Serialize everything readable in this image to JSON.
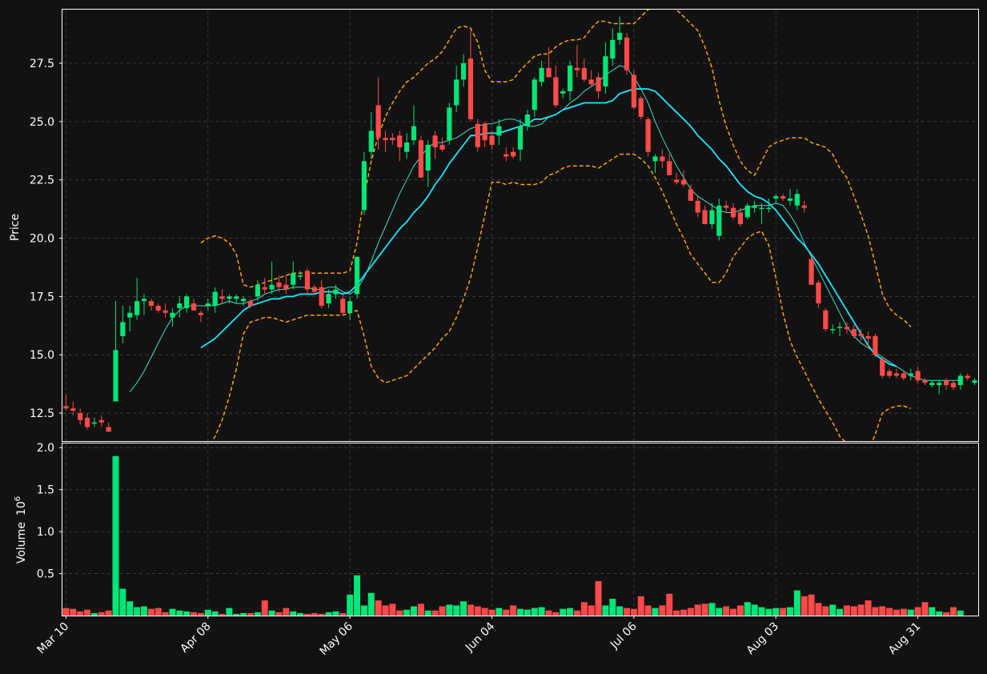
{
  "chart_data": {
    "type": "candlestick",
    "price_ylabel": "Price",
    "volume_ylabel": "Volume",
    "volume_exponent": "6",
    "price_ylim": [
      11.3,
      29.8
    ],
    "volume_ylim": [
      0,
      2.05
    ],
    "price_ticks": [
      "12.5",
      "15.0",
      "17.5",
      "20.0",
      "22.5",
      "25.0",
      "27.5"
    ],
    "volume_ticks": [
      "0.5",
      "1.0",
      "1.5",
      "2.0"
    ],
    "x_tick_labels": [
      {
        "label": "Mar 10",
        "index": 0
      },
      {
        "label": "Apr 08",
        "index": 20
      },
      {
        "label": "May 06",
        "index": 40
      },
      {
        "label": "Jun 04",
        "index": 60
      },
      {
        "label": "Jul 06",
        "index": 80
      },
      {
        "label": "Aug 03",
        "index": 100
      },
      {
        "label": "Aug 31",
        "index": 120
      }
    ],
    "grid": true,
    "colors": {
      "background": "#121212",
      "up": "#00e676",
      "down": "#ff4a4a",
      "bollinger": "#ffa500",
      "ma_fast": "#40e0d0",
      "ma_slow": "#1fe6ff",
      "grid": "#444444",
      "frame": "#ffffff",
      "text": "#ffffff"
    },
    "ohlc": [
      [
        12.8,
        13.3,
        12.6,
        12.7
      ],
      [
        12.7,
        13.0,
        12.4,
        12.6
      ],
      [
        12.5,
        12.7,
        12.0,
        12.2
      ],
      [
        12.3,
        12.5,
        11.8,
        11.9
      ],
      [
        12.1,
        12.3,
        11.9,
        12.1
      ],
      [
        12.2,
        12.4,
        11.9,
        12.1
      ],
      [
        11.9,
        12.1,
        11.7,
        11.7
      ],
      [
        13.0,
        17.3,
        13.0,
        15.2
      ],
      [
        15.8,
        17.1,
        15.5,
        16.4
      ],
      [
        16.6,
        17.1,
        16.0,
        16.8
      ],
      [
        16.7,
        18.3,
        16.5,
        17.3
      ],
      [
        17.3,
        17.6,
        16.7,
        17.4
      ],
      [
        17.3,
        17.4,
        16.9,
        17.1
      ],
      [
        17.1,
        17.2,
        16.8,
        16.9
      ],
      [
        16.9,
        17.2,
        16.6,
        16.8
      ],
      [
        16.6,
        17.0,
        16.2,
        16.8
      ],
      [
        17.0,
        17.5,
        16.6,
        17.2
      ],
      [
        17.0,
        17.6,
        16.8,
        17.5
      ],
      [
        17.2,
        17.4,
        16.9,
        16.9
      ],
      [
        16.8,
        16.9,
        16.4,
        16.7
      ],
      [
        17.1,
        17.4,
        16.9,
        17.2
      ],
      [
        17.1,
        17.9,
        16.8,
        17.7
      ],
      [
        17.5,
        17.8,
        17.2,
        17.4
      ],
      [
        17.4,
        17.6,
        17.2,
        17.5
      ],
      [
        17.4,
        17.6,
        17.2,
        17.5
      ],
      [
        17.3,
        17.5,
        17.1,
        17.4
      ],
      [
        17.3,
        17.4,
        17.0,
        17.1
      ],
      [
        17.5,
        18.2,
        17.3,
        18.0
      ],
      [
        17.9,
        18.3,
        17.6,
        17.8
      ],
      [
        17.8,
        19.0,
        17.6,
        18.0
      ],
      [
        18.1,
        18.4,
        17.7,
        17.9
      ],
      [
        18.0,
        18.4,
        17.6,
        17.8
      ],
      [
        18.0,
        19.0,
        17.8,
        18.5
      ],
      [
        18.4,
        18.6,
        18.2,
        18.4
      ],
      [
        18.6,
        18.7,
        17.6,
        17.8
      ],
      [
        17.9,
        18.0,
        17.6,
        17.7
      ],
      [
        17.9,
        18.2,
        17.0,
        17.1
      ],
      [
        17.2,
        17.8,
        17.0,
        17.6
      ],
      [
        17.6,
        18.0,
        17.4,
        17.8
      ],
      [
        17.4,
        17.6,
        16.7,
        16.8
      ],
      [
        16.8,
        17.5,
        16.5,
        17.3
      ],
      [
        17.6,
        19.2,
        17.4,
        19.2
      ],
      [
        21.2,
        23.7,
        21.0,
        23.3
      ],
      [
        23.7,
        25.4,
        23.4,
        24.6
      ],
      [
        25.7,
        26.9,
        23.8,
        24.3
      ],
      [
        24.3,
        24.6,
        23.7,
        24.2
      ],
      [
        24.3,
        24.5,
        24.0,
        24.2
      ],
      [
        24.4,
        24.6,
        23.3,
        23.9
      ],
      [
        23.7,
        24.5,
        23.4,
        24.1
      ],
      [
        24.2,
        25.7,
        24.0,
        24.8
      ],
      [
        24.2,
        24.4,
        22.6,
        22.6
      ],
      [
        22.9,
        24.2,
        22.2,
        24.0
      ],
      [
        24.4,
        24.6,
        23.4,
        23.9
      ],
      [
        24.0,
        24.3,
        23.7,
        23.8
      ],
      [
        24.2,
        25.8,
        24.0,
        25.6
      ],
      [
        25.7,
        27.4,
        25.4,
        26.8
      ],
      [
        26.8,
        27.9,
        26.5,
        27.5
      ],
      [
        27.7,
        28.9,
        25.0,
        25.1
      ],
      [
        24.9,
        25.1,
        23.7,
        23.9
      ],
      [
        24.9,
        25.0,
        23.9,
        24.2
      ],
      [
        24.4,
        24.6,
        23.8,
        24.0
      ],
      [
        24.4,
        25.1,
        24.0,
        24.8
      ],
      [
        23.6,
        23.9,
        23.3,
        23.5
      ],
      [
        23.7,
        23.9,
        23.4,
        23.5
      ],
      [
        23.8,
        25.1,
        23.3,
        24.8
      ],
      [
        24.8,
        25.5,
        24.6,
        25.3
      ],
      [
        25.5,
        26.9,
        25.2,
        26.8
      ],
      [
        26.7,
        27.6,
        26.5,
        27.3
      ],
      [
        27.3,
        28.2,
        26.9,
        26.9
      ],
      [
        26.9,
        27.4,
        25.6,
        25.7
      ],
      [
        26.2,
        26.4,
        26.0,
        26.3
      ],
      [
        26.3,
        27.6,
        25.9,
        27.4
      ],
      [
        27.3,
        28.3,
        26.9,
        27.2
      ],
      [
        27.3,
        27.7,
        26.7,
        26.8
      ],
      [
        26.8,
        27.2,
        26.5,
        26.6
      ],
      [
        26.9,
        27.1,
        26.0,
        26.3
      ],
      [
        26.5,
        28.4,
        26.2,
        27.8
      ],
      [
        27.7,
        29.0,
        27.4,
        28.5
      ],
      [
        28.5,
        29.5,
        28.3,
        28.8
      ],
      [
        28.6,
        28.8,
        27.0,
        27.2
      ],
      [
        27.0,
        27.2,
        25.5,
        25.6
      ],
      [
        26.0,
        26.1,
        25.1,
        25.2
      ],
      [
        25.1,
        25.2,
        23.5,
        23.7
      ],
      [
        23.3,
        23.6,
        22.8,
        23.5
      ],
      [
        23.5,
        23.8,
        23.0,
        23.3
      ],
      [
        23.3,
        23.6,
        22.7,
        22.7
      ],
      [
        22.5,
        22.8,
        22.3,
        22.4
      ],
      [
        22.5,
        22.9,
        22.2,
        22.3
      ],
      [
        22.1,
        22.3,
        21.7,
        21.6
      ],
      [
        21.6,
        21.8,
        20.9,
        21.1
      ],
      [
        21.2,
        21.4,
        20.6,
        20.6
      ],
      [
        20.6,
        21.5,
        20.4,
        21.2
      ],
      [
        20.1,
        21.7,
        19.9,
        21.4
      ],
      [
        21.4,
        21.6,
        21.1,
        21.3
      ],
      [
        21.3,
        21.5,
        20.8,
        20.9
      ],
      [
        21.1,
        21.3,
        20.5,
        20.6
      ],
      [
        20.9,
        21.5,
        20.8,
        21.4
      ],
      [
        21.3,
        21.6,
        21.1,
        21.4
      ],
      [
        21.3,
        21.5,
        20.6,
        21.3
      ],
      [
        21.3,
        21.7,
        21.1,
        21.3
      ],
      [
        21.7,
        21.9,
        21.5,
        21.8
      ],
      [
        21.8,
        21.9,
        21.6,
        21.7
      ],
      [
        21.6,
        22.1,
        21.4,
        21.7
      ],
      [
        21.4,
        22.1,
        21.2,
        21.9
      ],
      [
        21.4,
        21.6,
        21.1,
        21.3
      ],
      [
        19.1,
        19.3,
        18.1,
        18.0
      ],
      [
        18.1,
        18.2,
        17.0,
        17.2
      ],
      [
        16.9,
        17.0,
        16.0,
        16.1
      ],
      [
        16.1,
        16.3,
        15.9,
        16.1
      ],
      [
        16.2,
        16.4,
        15.8,
        16.2
      ],
      [
        16.2,
        16.4,
        15.9,
        16.1
      ],
      [
        16.1,
        16.3,
        15.7,
        15.8
      ],
      [
        15.9,
        16.1,
        15.6,
        15.8
      ],
      [
        15.8,
        16.0,
        15.3,
        15.7
      ],
      [
        15.8,
        15.9,
        14.9,
        15.0
      ],
      [
        14.8,
        14.9,
        14.0,
        14.1
      ],
      [
        14.3,
        14.4,
        14.0,
        14.1
      ],
      [
        14.2,
        14.4,
        14.0,
        14.1
      ],
      [
        14.2,
        14.3,
        13.9,
        14.0
      ],
      [
        14.1,
        14.4,
        13.9,
        14.2
      ],
      [
        14.3,
        14.5,
        13.8,
        13.9
      ],
      [
        13.9,
        14.0,
        13.7,
        13.8
      ],
      [
        13.7,
        13.9,
        13.6,
        13.8
      ],
      [
        13.7,
        13.9,
        13.3,
        13.8
      ],
      [
        13.9,
        14.0,
        13.5,
        13.7
      ],
      [
        13.8,
        13.9,
        13.5,
        13.6
      ],
      [
        13.7,
        14.2,
        13.5,
        14.1
      ],
      [
        14.1,
        14.2,
        13.9,
        14.0
      ],
      [
        13.8,
        14.0,
        13.7,
        13.9
      ]
    ],
    "volume": [
      0.09,
      0.08,
      0.05,
      0.07,
      0.03,
      0.04,
      0.06,
      1.9,
      0.32,
      0.17,
      0.1,
      0.11,
      0.08,
      0.09,
      0.04,
      0.08,
      0.06,
      0.05,
      0.04,
      0.03,
      0.07,
      0.05,
      0.02,
      0.09,
      0.02,
      0.03,
      0.03,
      0.04,
      0.18,
      0.06,
      0.04,
      0.09,
      0.05,
      0.03,
      0.02,
      0.03,
      0.02,
      0.04,
      0.05,
      0.03,
      0.25,
      0.48,
      0.12,
      0.27,
      0.18,
      0.12,
      0.14,
      0.06,
      0.07,
      0.11,
      0.14,
      0.06,
      0.06,
      0.11,
      0.13,
      0.12,
      0.17,
      0.13,
      0.11,
      0.09,
      0.07,
      0.09,
      0.07,
      0.12,
      0.08,
      0.07,
      0.09,
      0.1,
      0.06,
      0.04,
      0.08,
      0.09,
      0.06,
      0.16,
      0.12,
      0.41,
      0.12,
      0.2,
      0.11,
      0.09,
      0.08,
      0.23,
      0.12,
      0.09,
      0.12,
      0.26,
      0.06,
      0.07,
      0.09,
      0.13,
      0.14,
      0.15,
      0.09,
      0.11,
      0.08,
      0.12,
      0.16,
      0.13,
      0.1,
      0.08,
      0.09,
      0.09,
      0.1,
      0.3,
      0.23,
      0.25,
      0.15,
      0.11,
      0.13,
      0.08,
      0.12,
      0.11,
      0.13,
      0.18,
      0.1,
      0.11,
      0.09,
      0.07,
      0.08,
      0.07,
      0.1,
      0.16,
      0.1,
      0.05,
      0.04,
      0.1,
      0.06
    ],
    "bollinger_upper": [
      null,
      null,
      null,
      null,
      null,
      null,
      null,
      null,
      null,
      null,
      null,
      null,
      null,
      null,
      null,
      null,
      null,
      null,
      null,
      19.8,
      20.0,
      20.1,
      20.0,
      19.8,
      19.3,
      18.0,
      17.9,
      18.0,
      18.1,
      18.2,
      18.3,
      18.4,
      18.5,
      18.5,
      18.5,
      18.5,
      18.5,
      18.5,
      18.5,
      18.5,
      18.6,
      19.8,
      21.8,
      23.3,
      24.4,
      25.2,
      25.8,
      26.3,
      26.7,
      26.9,
      27.2,
      27.5,
      27.7,
      28.0,
      28.5,
      29.0,
      29.1,
      29.0,
      28.4,
      27.2,
      26.7,
      26.7,
      26.7,
      26.8,
      27.2,
      27.5,
      27.8,
      27.9,
      27.9,
      28.2,
      28.4,
      28.5,
      28.5,
      28.6,
      29.0,
      29.3,
      29.3,
      29.2,
      29.2,
      29.2,
      29.2,
      29.5,
      29.8,
      29.9,
      29.9,
      29.9,
      29.8,
      29.5,
      29.2,
      28.9,
      28.2,
      27.3,
      25.9,
      24.8,
      24.0,
      23.3,
      22.9,
      22.7,
      23.3,
      23.9,
      24.1,
      24.2,
      24.3,
      24.3,
      24.3,
      24.1,
      24.0,
      23.9,
      23.6,
      23.0,
      22.6,
      21.8,
      21.0,
      20.1,
      18.9,
      17.6,
      17.0,
      16.7,
      16.5,
      16.2
    ],
    "bollinger_lower": [
      null,
      null,
      null,
      null,
      null,
      null,
      null,
      null,
      null,
      null,
      null,
      null,
      null,
      null,
      null,
      null,
      null,
      null,
      null,
      10.8,
      11.0,
      11.5,
      12.2,
      13.2,
      14.4,
      15.9,
      16.4,
      16.5,
      16.6,
      16.6,
      16.5,
      16.4,
      16.5,
      16.6,
      16.7,
      16.7,
      16.7,
      16.7,
      16.7,
      16.7,
      16.8,
      16.9,
      15.8,
      14.5,
      14.0,
      13.8,
      13.9,
      14.0,
      14.1,
      14.4,
      14.7,
      15.0,
      15.3,
      15.7,
      16.0,
      16.6,
      17.4,
      18.3,
      19.6,
      21.0,
      22.4,
      22.4,
      22.3,
      22.4,
      22.3,
      22.3,
      22.3,
      22.4,
      22.7,
      22.8,
      23.0,
      23.1,
      23.1,
      23.1,
      23.1,
      23.0,
      23.2,
      23.4,
      23.6,
      23.6,
      23.6,
      23.4,
      23.1,
      22.6,
      22.0,
      21.3,
      20.6,
      20.0,
      19.3,
      18.9,
      18.5,
      18.1,
      18.1,
      18.5,
      19.2,
      19.6,
      20.0,
      20.2,
      20.3,
      19.7,
      18.3,
      16.8,
      15.6,
      14.9,
      14.3,
      13.7,
      13.1,
      12.6,
      12.1,
      11.5,
      11.2,
      10.9,
      10.8,
      10.8,
      11.6,
      12.5,
      12.7,
      12.8,
      12.8,
      12.7
    ],
    "ma_fast": [
      null,
      null,
      null,
      null,
      null,
      null,
      null,
      null,
      null,
      13.4,
      13.8,
      14.3,
      14.9,
      15.5,
      16.1,
      16.6,
      16.9,
      17.1,
      17.1,
      17.1,
      17.1,
      17.1,
      17.2,
      17.3,
      17.2,
      17.2,
      17.3,
      17.4,
      17.6,
      17.7,
      17.8,
      17.8,
      17.9,
      17.9,
      17.9,
      17.8,
      17.8,
      17.9,
      17.9,
      17.7,
      17.6,
      17.8,
      18.3,
      19.0,
      19.8,
      20.5,
      21.2,
      21.9,
      22.5,
      23.1,
      23.5,
      23.9,
      24.1,
      24.1,
      24.2,
      24.3,
      24.5,
      24.7,
      24.8,
      24.9,
      24.9,
      25.0,
      25.1,
      25.1,
      25.0,
      24.8,
      24.8,
      24.9,
      25.2,
      25.3,
      25.5,
      25.8,
      26.0,
      26.3,
      26.5,
      26.7,
      27.0,
      27.2,
      27.4,
      27.3,
      26.9,
      26.4,
      25.8,
      25.0,
      24.3,
      23.7,
      23.1,
      22.6,
      22.1,
      21.8,
      21.6,
      21.4,
      21.2,
      21.1,
      21.1,
      21.2,
      21.3,
      21.4,
      21.4,
      21.4,
      21.5,
      21.4,
      21.0,
      20.5,
      19.8,
      19.2,
      18.6,
      18.0,
      17.4,
      16.8,
      16.2,
      15.8,
      15.5,
      15.3,
      15.1,
      14.9,
      14.7,
      14.5,
      14.3,
      14.1,
      14.0,
      13.9,
      13.9,
      13.9,
      13.9,
      13.9,
      13.9
    ],
    "ma_slow": [
      null,
      null,
      null,
      null,
      null,
      null,
      null,
      null,
      null,
      null,
      null,
      null,
      null,
      null,
      null,
      null,
      null,
      null,
      null,
      15.3,
      15.5,
      15.7,
      16.0,
      16.3,
      16.6,
      16.9,
      17.1,
      17.2,
      17.3,
      17.4,
      17.4,
      17.5,
      17.5,
      17.6,
      17.6,
      17.6,
      17.7,
      17.7,
      17.7,
      17.6,
      17.7,
      18.0,
      18.4,
      18.8,
      19.2,
      19.6,
      20.0,
      20.4,
      20.7,
      21.1,
      21.4,
      21.8,
      22.3,
      22.7,
      23.2,
      23.6,
      24.0,
      24.4,
      24.4,
      24.5,
      24.5,
      24.5,
      24.6,
      24.7,
      24.8,
      24.9,
      25.1,
      25.1,
      25.2,
      25.3,
      25.5,
      25.6,
      25.7,
      25.8,
      25.8,
      25.8,
      25.8,
      25.9,
      26.2,
      26.3,
      26.4,
      26.4,
      26.4,
      26.3,
      26.0,
      25.7,
      25.4,
      25.1,
      24.8,
      24.4,
      24.1,
      23.8,
      23.4,
      23.1,
      22.7,
      22.3,
      22.0,
      21.8,
      21.7,
      21.5,
      21.2,
      20.8,
      20.4,
      20.0,
      19.7,
      19.3,
      18.9,
      18.4,
      17.9,
      17.4,
      16.9,
      16.4,
      15.9,
      15.4,
      15.0,
      14.8,
      14.6,
      14.5
    ]
  }
}
